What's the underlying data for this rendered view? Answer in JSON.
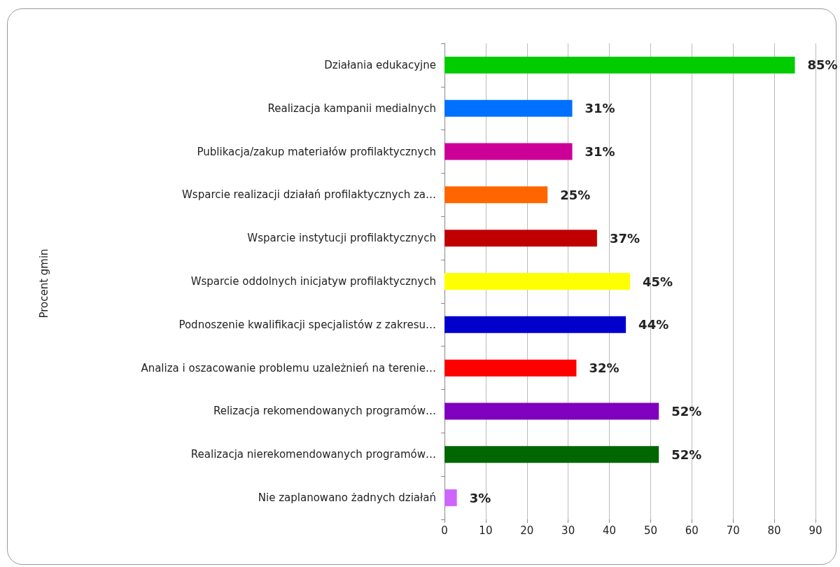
{
  "chart_data": {
    "type": "bar",
    "orientation": "horizontal",
    "annotations": [
      "Procent gmin"
    ],
    "categories": [
      "Działania edukacyjne",
      "Realizacja kampanii medialnych",
      "Publikacja/zakup materiałów profilaktycznych",
      "Wsparcie realizacji działań profilaktycznych za…",
      "Wsparcie instytucji profilaktycznych",
      "Wsparcie oddolnych inicjatyw profilaktycznych",
      "Podnoszenie kwalifikacji specjalistów z zakresu…",
      "Analiza i oszacowanie problemu uzależnień na terenie…",
      "Relizacja rekomendowanych programów…",
      "Realizacja nierekomendowanych programów…",
      "Nie zaplanowano żadnych działań"
    ],
    "values": [
      85,
      31,
      31,
      25,
      37,
      45,
      44,
      32,
      52,
      52,
      3
    ],
    "value_labels": [
      "85%",
      "31%",
      "31%",
      "25%",
      "37%",
      "45%",
      "44%",
      "32%",
      "52%",
      "52%",
      "3%"
    ],
    "colors": [
      "#00cc00",
      "#0070ff",
      "#cc0099",
      "#ff6600",
      "#c00000",
      "#ffff00",
      "#0000cc",
      "#ff0000",
      "#7f00bf",
      "#006600",
      "#cc66ff"
    ],
    "xlim": [
      0,
      90
    ],
    "xticks": [
      0,
      10,
      20,
      30,
      40,
      50,
      60,
      70,
      80,
      90
    ],
    "grid": "x"
  }
}
